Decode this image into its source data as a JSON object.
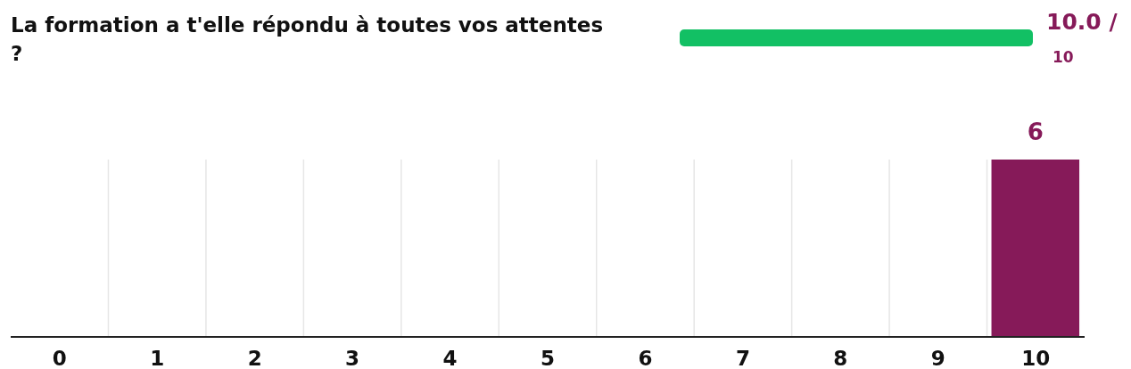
{
  "chart_data": {
    "type": "bar",
    "title": "La formation a t'elle répondu à toutes vos attentes ?",
    "categories": [
      "0",
      "1",
      "2",
      "3",
      "4",
      "5",
      "6",
      "7",
      "8",
      "9",
      "10"
    ],
    "values": [
      0,
      0,
      0,
      0,
      0,
      0,
      0,
      0,
      0,
      0,
      6
    ],
    "value_labels": [
      null,
      null,
      null,
      null,
      null,
      null,
      null,
      null,
      null,
      null,
      "6"
    ],
    "color": "#861a59",
    "grid": "x",
    "annotations": [
      "10.0 /",
      "10"
    ]
  }
}
